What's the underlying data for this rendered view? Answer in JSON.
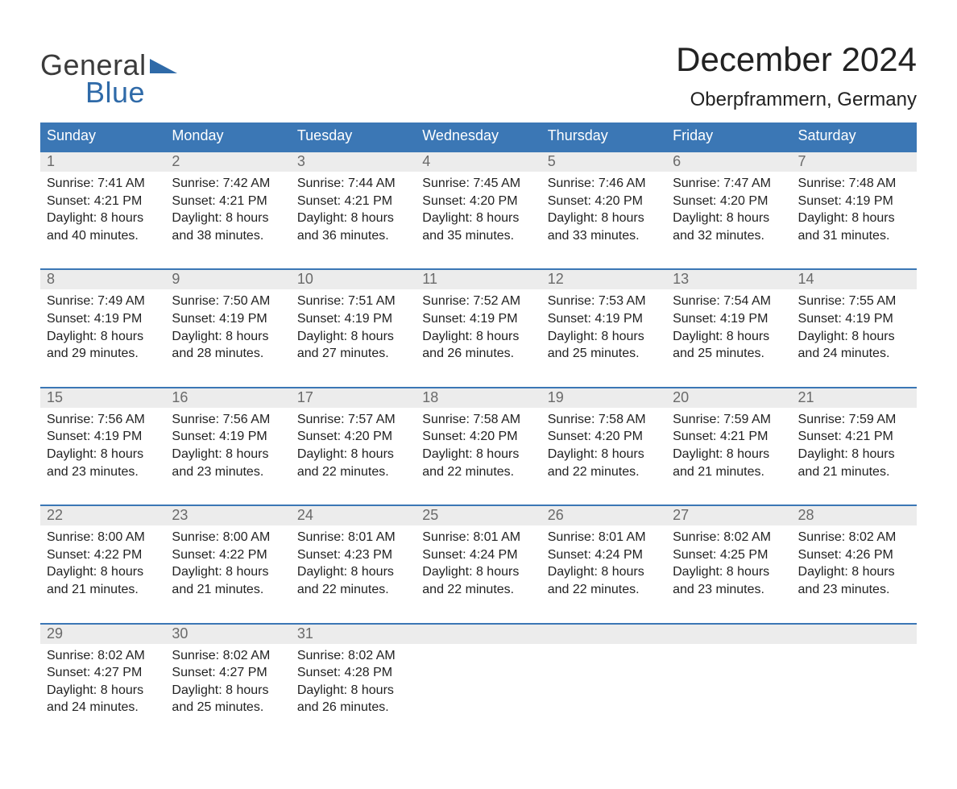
{
  "logo": {
    "text_top": "General",
    "text_bottom": "Blue",
    "grey": "#3b3b3b",
    "blue": "#2f6aa8"
  },
  "title": "December 2024",
  "location": "Oberpframmern, Germany",
  "colors": {
    "header_bg": "#3b77b5",
    "header_text": "#ffffff",
    "border": "#3b77b5",
    "daynum_bg": "#ececec",
    "daynum_text": "#6a6a6a",
    "body_text": "#222222",
    "page_bg": "#ffffff"
  },
  "weekdays": [
    "Sunday",
    "Monday",
    "Tuesday",
    "Wednesday",
    "Thursday",
    "Friday",
    "Saturday"
  ],
  "labels": {
    "sunrise": "Sunrise: ",
    "sunset": "Sunset: ",
    "daylight_prefix": "Daylight: ",
    "daylight_suffix_min": " minutes."
  },
  "weeks": [
    [
      {
        "n": "1",
        "sunrise": "7:41 AM",
        "sunset": "4:21 PM",
        "dh": "8",
        "dm": "40"
      },
      {
        "n": "2",
        "sunrise": "7:42 AM",
        "sunset": "4:21 PM",
        "dh": "8",
        "dm": "38"
      },
      {
        "n": "3",
        "sunrise": "7:44 AM",
        "sunset": "4:21 PM",
        "dh": "8",
        "dm": "36"
      },
      {
        "n": "4",
        "sunrise": "7:45 AM",
        "sunset": "4:20 PM",
        "dh": "8",
        "dm": "35"
      },
      {
        "n": "5",
        "sunrise": "7:46 AM",
        "sunset": "4:20 PM",
        "dh": "8",
        "dm": "33"
      },
      {
        "n": "6",
        "sunrise": "7:47 AM",
        "sunset": "4:20 PM",
        "dh": "8",
        "dm": "32"
      },
      {
        "n": "7",
        "sunrise": "7:48 AM",
        "sunset": "4:19 PM",
        "dh": "8",
        "dm": "31"
      }
    ],
    [
      {
        "n": "8",
        "sunrise": "7:49 AM",
        "sunset": "4:19 PM",
        "dh": "8",
        "dm": "29"
      },
      {
        "n": "9",
        "sunrise": "7:50 AM",
        "sunset": "4:19 PM",
        "dh": "8",
        "dm": "28"
      },
      {
        "n": "10",
        "sunrise": "7:51 AM",
        "sunset": "4:19 PM",
        "dh": "8",
        "dm": "27"
      },
      {
        "n": "11",
        "sunrise": "7:52 AM",
        "sunset": "4:19 PM",
        "dh": "8",
        "dm": "26"
      },
      {
        "n": "12",
        "sunrise": "7:53 AM",
        "sunset": "4:19 PM",
        "dh": "8",
        "dm": "25"
      },
      {
        "n": "13",
        "sunrise": "7:54 AM",
        "sunset": "4:19 PM",
        "dh": "8",
        "dm": "25"
      },
      {
        "n": "14",
        "sunrise": "7:55 AM",
        "sunset": "4:19 PM",
        "dh": "8",
        "dm": "24"
      }
    ],
    [
      {
        "n": "15",
        "sunrise": "7:56 AM",
        "sunset": "4:19 PM",
        "dh": "8",
        "dm": "23"
      },
      {
        "n": "16",
        "sunrise": "7:56 AM",
        "sunset": "4:19 PM",
        "dh": "8",
        "dm": "23"
      },
      {
        "n": "17",
        "sunrise": "7:57 AM",
        "sunset": "4:20 PM",
        "dh": "8",
        "dm": "22"
      },
      {
        "n": "18",
        "sunrise": "7:58 AM",
        "sunset": "4:20 PM",
        "dh": "8",
        "dm": "22"
      },
      {
        "n": "19",
        "sunrise": "7:58 AM",
        "sunset": "4:20 PM",
        "dh": "8",
        "dm": "22"
      },
      {
        "n": "20",
        "sunrise": "7:59 AM",
        "sunset": "4:21 PM",
        "dh": "8",
        "dm": "21"
      },
      {
        "n": "21",
        "sunrise": "7:59 AM",
        "sunset": "4:21 PM",
        "dh": "8",
        "dm": "21"
      }
    ],
    [
      {
        "n": "22",
        "sunrise": "8:00 AM",
        "sunset": "4:22 PM",
        "dh": "8",
        "dm": "21"
      },
      {
        "n": "23",
        "sunrise": "8:00 AM",
        "sunset": "4:22 PM",
        "dh": "8",
        "dm": "21"
      },
      {
        "n": "24",
        "sunrise": "8:01 AM",
        "sunset": "4:23 PM",
        "dh": "8",
        "dm": "22"
      },
      {
        "n": "25",
        "sunrise": "8:01 AM",
        "sunset": "4:24 PM",
        "dh": "8",
        "dm": "22"
      },
      {
        "n": "26",
        "sunrise": "8:01 AM",
        "sunset": "4:24 PM",
        "dh": "8",
        "dm": "22"
      },
      {
        "n": "27",
        "sunrise": "8:02 AM",
        "sunset": "4:25 PM",
        "dh": "8",
        "dm": "23"
      },
      {
        "n": "28",
        "sunrise": "8:02 AM",
        "sunset": "4:26 PM",
        "dh": "8",
        "dm": "23"
      }
    ],
    [
      {
        "n": "29",
        "sunrise": "8:02 AM",
        "sunset": "4:27 PM",
        "dh": "8",
        "dm": "24"
      },
      {
        "n": "30",
        "sunrise": "8:02 AM",
        "sunset": "4:27 PM",
        "dh": "8",
        "dm": "25"
      },
      {
        "n": "31",
        "sunrise": "8:02 AM",
        "sunset": "4:28 PM",
        "dh": "8",
        "dm": "26"
      },
      null,
      null,
      null,
      null
    ]
  ]
}
